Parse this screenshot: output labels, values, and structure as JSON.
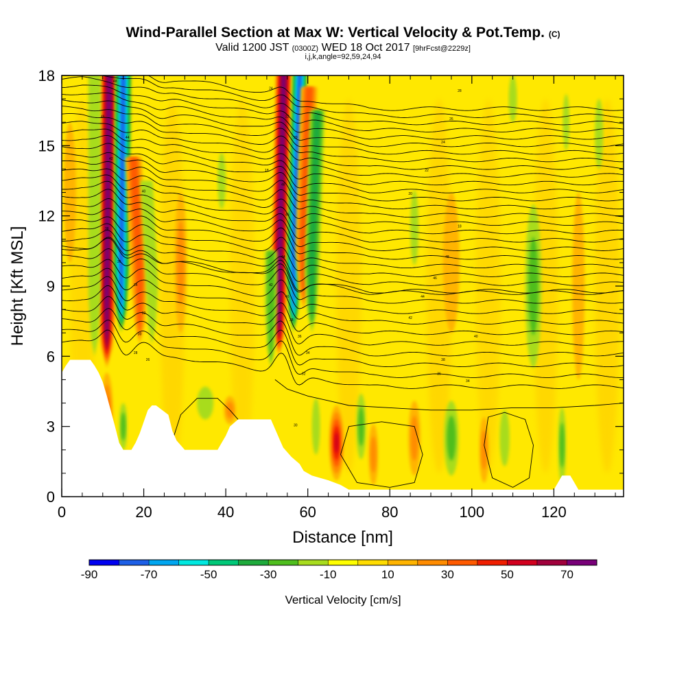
{
  "header": {
    "title_main": "Wind-Parallel Section at Max W: Vertical Velocity & Pot.Temp.",
    "title_mark": "(C)",
    "valid_prefix": "Valid 1200 JST",
    "valid_utc": "(0300Z)",
    "valid_date": "WED 18 Oct 2017",
    "valid_fcst": "[9hrFcst@2229z]",
    "params": "i,j,k,angle=92,59,24,94"
  },
  "chart_data": {
    "type": "heatmap",
    "xlabel": "Distance [nm]",
    "ylabel": "Height [Kft MSL]",
    "xlim": [
      0,
      137
    ],
    "ylim": [
      0,
      18
    ],
    "x_ticks": [
      "0",
      "20",
      "40",
      "60",
      "80",
      "100",
      "120"
    ],
    "y_ticks": [
      "0",
      "3",
      "6",
      "9",
      "12",
      "15",
      "18"
    ],
    "grid": false,
    "colorbar": {
      "title": "Vertical Velocity [cm/s]",
      "position": "bottom",
      "range": [
        -90,
        80
      ],
      "labels": [
        "-90",
        "-70",
        "-50",
        "-30",
        "-10",
        "10",
        "30",
        "50",
        "70"
      ],
      "colors": [
        "#0000f0",
        "#1d5fe6",
        "#00a6f0",
        "#00e8e0",
        "#00c878",
        "#1eaa3c",
        "#4fbe1e",
        "#a8dc1e",
        "#ffff00",
        "#ffdc00",
        "#ffb400",
        "#ff8c00",
        "#ff5a00",
        "#f01e00",
        "#d2001e",
        "#a0003c",
        "#780078"
      ]
    },
    "terrain": {
      "description_free": true,
      "x": [
        0,
        1,
        2,
        7,
        8,
        9,
        10,
        11,
        13,
        14,
        15,
        17,
        18,
        19,
        20,
        21,
        22,
        23,
        26,
        27,
        28,
        30,
        31,
        33,
        38,
        39,
        40,
        41,
        43,
        51,
        52,
        53,
        54,
        56,
        58,
        59,
        61,
        65,
        68,
        70,
        80,
        100,
        120,
        121,
        122,
        123,
        124,
        125,
        126,
        136,
        137
      ],
      "y": [
        5.3,
        5.6,
        5.85,
        5.85,
        5.6,
        5.3,
        4.9,
        4.3,
        3.0,
        2.3,
        2.0,
        2.0,
        2.3,
        2.7,
        3.2,
        3.7,
        3.9,
        3.9,
        3.5,
        2.8,
        2.4,
        2.0,
        2.0,
        2.0,
        2.0,
        2.3,
        2.6,
        3.0,
        3.3,
        3.3,
        2.9,
        2.5,
        2.1,
        1.7,
        1.4,
        1.1,
        0.9,
        0.7,
        0.5,
        0.3,
        0.3,
        0.3,
        0.3,
        0.6,
        0.9,
        0.9,
        0.9,
        0.6,
        0.3,
        0.3,
        0.3
      ]
    },
    "updrafts": [
      {
        "x": 11,
        "y0": 5.5,
        "y1": 18,
        "w": 75,
        "width": 2.2,
        "tilt": 0.05
      },
      {
        "x": 14.5,
        "y0": 7.0,
        "y1": 18,
        "w": -70,
        "width": 2.0,
        "tilt": 0.05
      },
      {
        "x": 8,
        "y0": 6.0,
        "y1": 18,
        "w": -15,
        "width": 1.5,
        "tilt": 0.0
      },
      {
        "x": 19,
        "y0": 6.5,
        "y1": 14,
        "w": 30,
        "width": 2.0,
        "tilt": -0.2
      },
      {
        "x": 22,
        "y0": 6.5,
        "y1": 13,
        "w": -15,
        "width": 1.5,
        "tilt": -0.2
      },
      {
        "x": 53,
        "y0": 6.0,
        "y1": 18,
        "w": 70,
        "width": 2.0,
        "tilt": 0.1
      },
      {
        "x": 56.5,
        "y0": 7.0,
        "y1": 18,
        "w": -70,
        "width": 1.8,
        "tilt": 0.15
      },
      {
        "x": 51,
        "y0": 5.5,
        "y1": 10,
        "w": -20,
        "width": 1.5,
        "tilt": 0.0
      },
      {
        "x": 59,
        "y0": 8.0,
        "y1": 17,
        "w": 30,
        "width": 2.0,
        "tilt": 0.15
      },
      {
        "x": 61,
        "y0": 7.0,
        "y1": 16,
        "w": -35,
        "width": 1.8,
        "tilt": 0.15
      }
    ],
    "blobs": [
      {
        "x": 67,
        "y": 2.3,
        "w": 50,
        "rx": 1.8,
        "ry": 1.6
      },
      {
        "x": 11,
        "y": 3.5,
        "w": 35,
        "rx": 1.5,
        "ry": 1.8
      },
      {
        "x": 15,
        "y": 3.0,
        "w": -20,
        "rx": 1.0,
        "ry": 1.0
      },
      {
        "x": 23,
        "y": 3.0,
        "w": -15,
        "rx": 1.0,
        "ry": 0.8
      },
      {
        "x": 35,
        "y": 4.0,
        "w": -15,
        "rx": 2.0,
        "ry": 0.7
      },
      {
        "x": 41,
        "y": 3.7,
        "w": 20,
        "rx": 1.5,
        "ry": 0.6
      },
      {
        "x": 62,
        "y": 3.0,
        "w": -15,
        "rx": 1.0,
        "ry": 1.2
      },
      {
        "x": 73,
        "y": 3.0,
        "w": -20,
        "rx": 1.2,
        "ry": 1.4
      },
      {
        "x": 76,
        "y": 1.8,
        "w": 25,
        "rx": 1.2,
        "ry": 1.3
      },
      {
        "x": 86,
        "y": 2.5,
        "w": 25,
        "rx": 1.5,
        "ry": 1.6
      },
      {
        "x": 95,
        "y": 2.5,
        "w": -25,
        "rx": 1.8,
        "ry": 1.6
      },
      {
        "x": 103,
        "y": 2.0,
        "w": 20,
        "rx": 1.2,
        "ry": 1.4
      },
      {
        "x": 108,
        "y": 2.5,
        "w": -15,
        "rx": 1.2,
        "ry": 1.2
      },
      {
        "x": 115,
        "y": 9.0,
        "w": -20,
        "rx": 2.0,
        "ry": 3.5
      },
      {
        "x": 122,
        "y": 2.2,
        "w": -25,
        "rx": 1.0,
        "ry": 1.6
      },
      {
        "x": 86,
        "y": 11.5,
        "w": -15,
        "rx": 1.0,
        "ry": 1.6
      },
      {
        "x": 39,
        "y": 13.5,
        "w": -15,
        "rx": 1.0,
        "ry": 1.2
      },
      {
        "x": 110,
        "y": 17.0,
        "w": -15,
        "rx": 1.0,
        "ry": 1.0
      },
      {
        "x": 123,
        "y": 16.0,
        "w": -15,
        "rx": 0.8,
        "ry": 1.2
      },
      {
        "x": 131,
        "y": 15.5,
        "w": -15,
        "rx": 1.0,
        "ry": 1.5
      },
      {
        "x": 29,
        "y": 10.0,
        "w": 20,
        "rx": 1.5,
        "ry": 3.0
      },
      {
        "x": 95,
        "y": 10.0,
        "w": 15,
        "rx": 2.0,
        "ry": 3.0
      },
      {
        "x": 126,
        "y": 9.0,
        "w": 15,
        "rx": 1.5,
        "ry": 4.0
      },
      {
        "x": 2,
        "y": 13.0,
        "w": 15,
        "rx": 1.5,
        "ry": 3.0
      }
    ],
    "isentropes": {
      "count": 34,
      "lowest_height_far": 4.7,
      "lowest_height_near": 6.6,
      "spacing_top": 0.38,
      "labels_shown": [
        "48",
        "46",
        "44",
        "42",
        "40",
        "38",
        "36",
        "34",
        "32",
        "30",
        "28",
        "26",
        "24",
        "22",
        "20",
        "18"
      ]
    },
    "low_contours": [
      {
        "type": "closed",
        "x": [
          70,
          78,
          86,
          88,
          86,
          80,
          72,
          68,
          70
        ],
        "y": [
          3.0,
          3.2,
          3.0,
          1.8,
          0.6,
          0.4,
          0.6,
          1.8,
          3.0
        ]
      },
      {
        "type": "closed",
        "x": [
          104,
          108,
          113,
          115,
          114,
          110,
          105,
          103,
          104
        ],
        "y": [
          3.4,
          3.6,
          3.3,
          2.2,
          0.8,
          0.4,
          0.8,
          2.2,
          3.4
        ]
      },
      {
        "type": "open",
        "x": [
          27,
          29,
          33,
          38,
          41,
          43
        ],
        "y": [
          2.4,
          3.5,
          4.2,
          4.2,
          3.7,
          3.3
        ]
      },
      {
        "type": "open",
        "x": [
          52,
          55,
          60,
          65,
          70,
          80,
          90,
          100,
          110,
          120,
          130,
          137
        ],
        "y": [
          5.0,
          4.6,
          4.3,
          4.1,
          3.9,
          3.8,
          3.7,
          3.7,
          3.8,
          3.8,
          3.9,
          4.0
        ]
      }
    ]
  }
}
